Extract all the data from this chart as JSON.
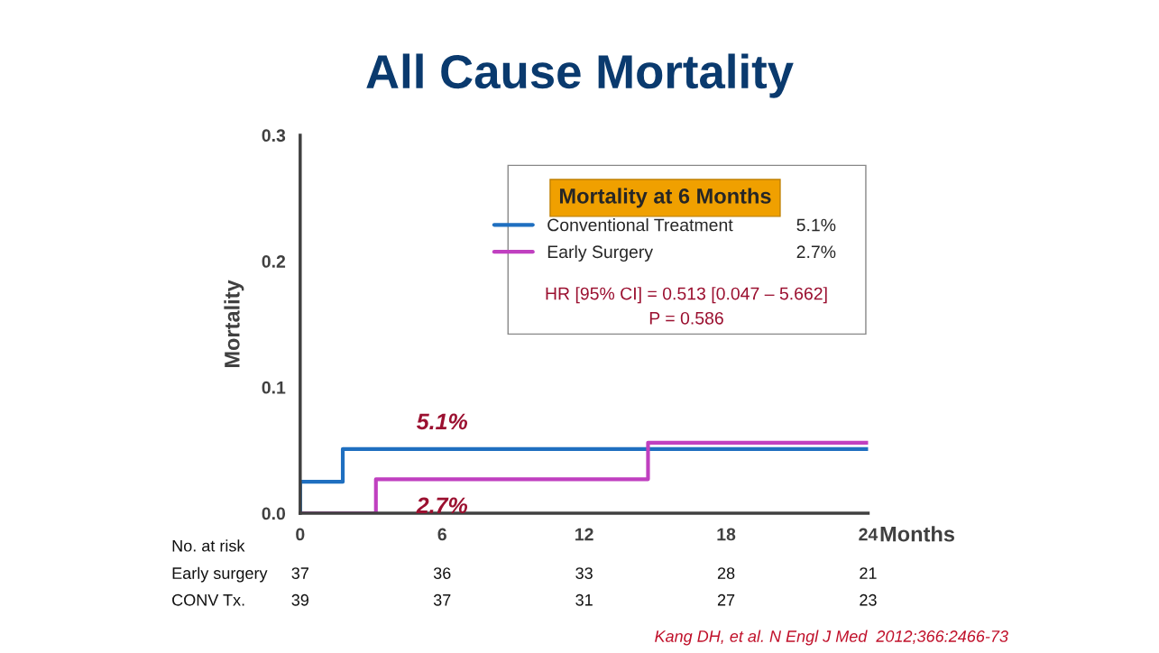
{
  "chart_data": {
    "type": "step",
    "title": "All Cause Mortality",
    "xlabel": "Months",
    "ylabel": "Mortality",
    "legend_title": "Mortality at 6 Months",
    "series": [
      {
        "name": "Conventional Treatment",
        "color": "#1f6fc0",
        "x": [
          0,
          0,
          1.8,
          24
        ],
        "values": [
          0,
          0.025,
          0.051,
          0.051
        ]
      },
      {
        "name": "Early Surgery",
        "color": "#c040c0",
        "x": [
          0,
          3.2,
          14.7,
          24
        ],
        "values": [
          0,
          0.027,
          0.056,
          0.056
        ]
      }
    ],
    "xlim": [
      0,
      24
    ],
    "xticks": [
      0,
      6,
      12,
      18,
      24
    ],
    "ylim": [
      0,
      0.3
    ],
    "yticks": [
      {
        "value": 0,
        "label": "0.0"
      },
      {
        "value": 0.1,
        "label": "0.1"
      },
      {
        "value": 0.2,
        "label": "0.2"
      },
      {
        "value": 0.3,
        "label": "0.3"
      }
    ],
    "grid": false,
    "legend": "top right",
    "marker": "none",
    "line_style": "solid",
    "annotations": [
      {
        "text": "5.1%",
        "x": 6,
        "y": 0.051
      },
      {
        "text": "2.7%",
        "x": 6,
        "y": 0.027
      },
      "5.1%",
      "2.7%",
      "HR [95% CI] = 0.513 [0.047 – 5.662]",
      "P = 0.586",
      "No. at risk",
      "Early surgery",
      "CONV Tx.",
      "Kang DH, et al. N Engl J Med  2012;366:2466-73",
      "37",
      "36",
      "33",
      "28",
      "21",
      "39",
      "37",
      "31",
      "27",
      "23"
    ]
  }
}
